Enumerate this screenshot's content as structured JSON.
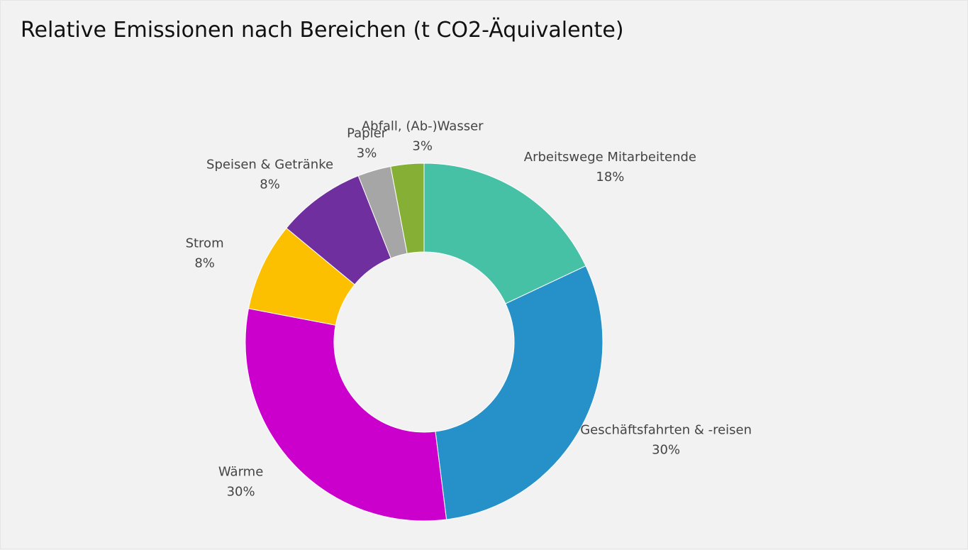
{
  "chart_data": {
    "type": "pie",
    "title": "Relative Emissionen nach Bereichen (t CO2-Äquivalente)",
    "donut": true,
    "slices": [
      {
        "label": "Arbeitswege Mitarbeitende",
        "value": 18,
        "value_label": "18%",
        "color": "#46c1a5"
      },
      {
        "label": "Geschäftsfahrten & -reisen",
        "value": 30,
        "value_label": "30%",
        "color": "#2690c8"
      },
      {
        "label": "Wärme",
        "value": 30,
        "value_label": "30%",
        "color": "#cc00cc"
      },
      {
        "label": "Strom",
        "value": 8,
        "value_label": "8%",
        "color": "#fdc000"
      },
      {
        "label": "Speisen & Getränke",
        "value": 8,
        "value_label": "8%",
        "color": "#6f2f9f"
      },
      {
        "label": "Papier",
        "value": 3,
        "value_label": "3%",
        "color": "#a6a6a6"
      },
      {
        "label": "Abfall, (Ab-)Wasser",
        "value": 3,
        "value_label": "3%",
        "color": "#85b035"
      }
    ]
  }
}
